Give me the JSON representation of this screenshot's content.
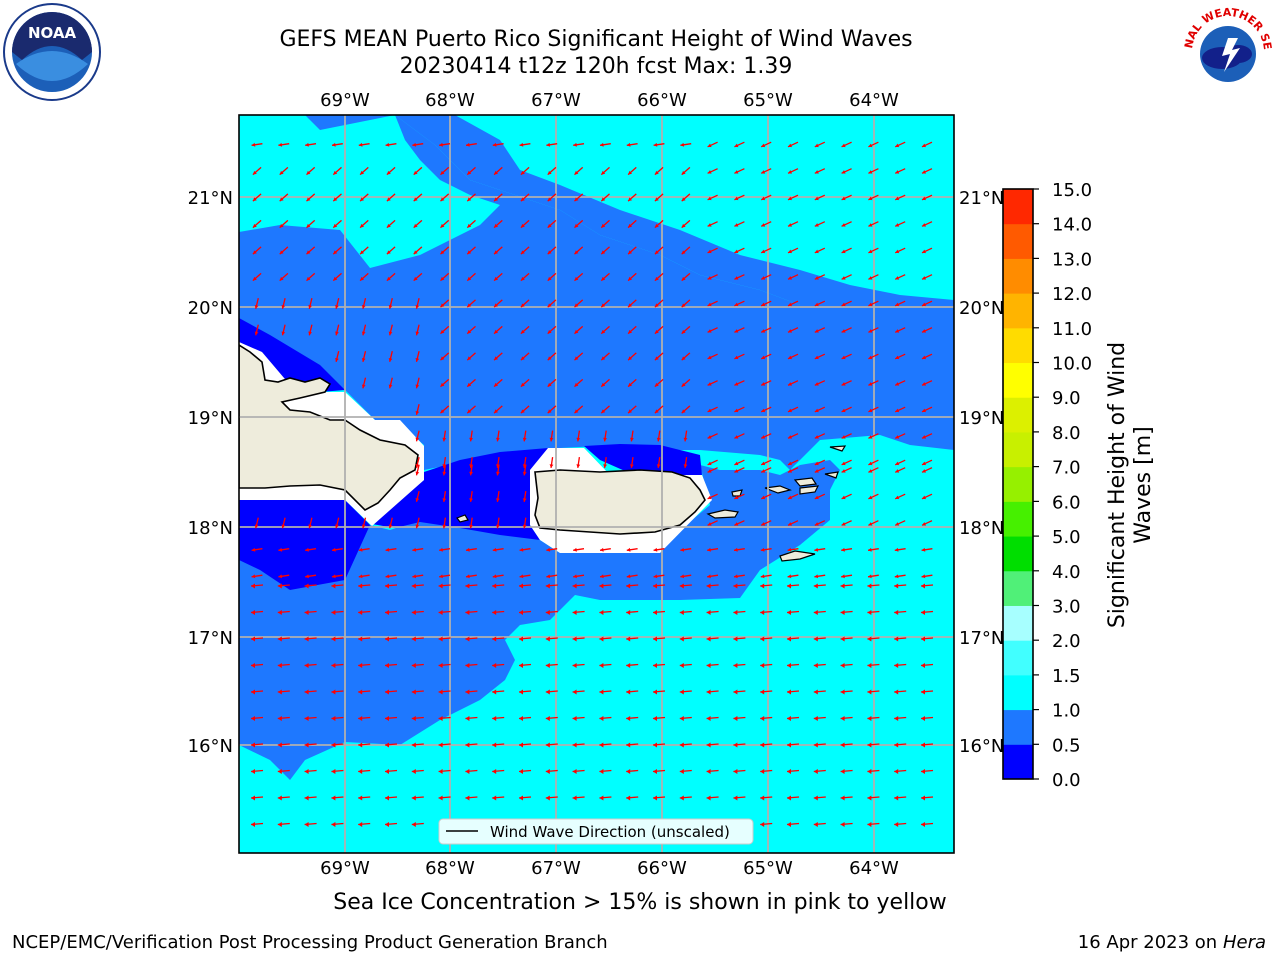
{
  "title": {
    "line1": "GEFS MEAN Puerto Rico Significant Height of Wind Waves",
    "line2": "20230414 t12z 120h fcst   Max: 1.39"
  },
  "logos": {
    "left": "noaa-logo",
    "right": "nws-logo",
    "left_text": "NOAA",
    "right_text": "NATIONAL WEATHER SERVICE"
  },
  "map": {
    "lon_labels": [
      "69°W",
      "68°W",
      "67°W",
      "66°W",
      "65°W",
      "64°W"
    ],
    "lat_labels": [
      "21°N",
      "20°N",
      "19°N",
      "18°N",
      "17°N",
      "16°N"
    ],
    "legend_label": "Wind Wave Direction (unscaled)",
    "arrow_color": "#ff0000",
    "land_color": "#eeecdc",
    "colors": {
      "0.0-0.5": "#0000ff",
      "0.5-1.0": "#1e78ff",
      "1.0-1.5": "#00ffff"
    }
  },
  "colorbar": {
    "label": "Significant Height of Wind Waves [m]",
    "label_line1": "Significant Height of Wind",
    "label_line2": "Waves [m]",
    "ticks": [
      "15.0",
      "14.0",
      "13.0",
      "12.0",
      "11.0",
      "10.0",
      "9.0",
      "8.0",
      "7.0",
      "6.0",
      "5.0",
      "4.0",
      "3.0",
      "2.0",
      "1.5",
      "1.0",
      "0.5",
      "0.0"
    ],
    "colors": [
      "#0000ff",
      "#1e78ff",
      "#00ffff",
      "#41ffff",
      "#a7ffff",
      "#50f078",
      "#00de00",
      "#46f000",
      "#96f000",
      "#c8f000",
      "#dcf000",
      "#ffff00",
      "#ffdc00",
      "#ffb400",
      "#ff8c00",
      "#ff5a00",
      "#ff2800"
    ]
  },
  "notes": {
    "ice": "Sea Ice Concentration > 15% is shown in pink to yellow",
    "footer_left": "NCEP/EMC/Verification Post Processing Product Generation Branch",
    "footer_right_prefix": "16 Apr 2023 on ",
    "footer_right_host": "Hera"
  }
}
